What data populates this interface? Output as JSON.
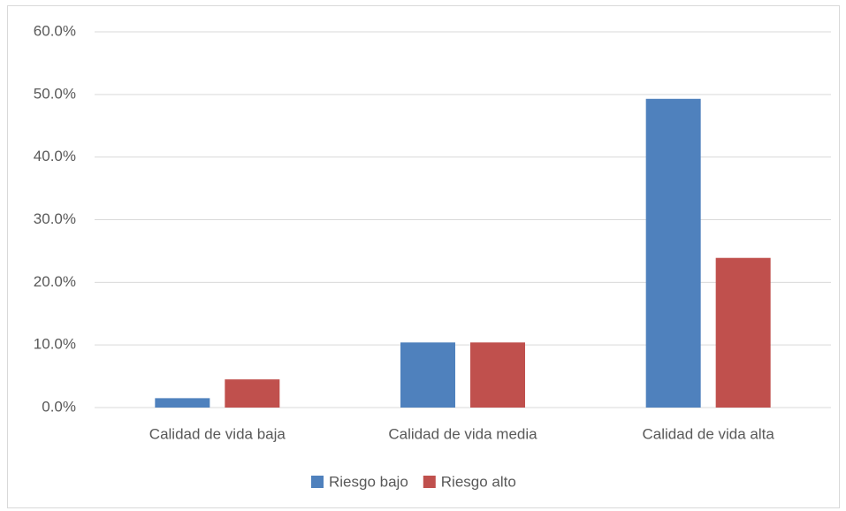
{
  "chart_data": {
    "type": "bar",
    "categories": [
      "Calidad de vida baja",
      "Calidad de vida media",
      "Calidad de vida alta"
    ],
    "series": [
      {
        "name": "Riesgo bajo",
        "color": "#4f81bd",
        "values": [
          1.5,
          10.4,
          49.3
        ]
      },
      {
        "name": "Riesgo alto",
        "color": "#c0504d",
        "values": [
          4.5,
          10.4,
          23.9
        ]
      }
    ],
    "ylim": [
      0,
      60
    ],
    "yticks": [
      {
        "value": 0,
        "label": "0.0%"
      },
      {
        "value": 10,
        "label": "10.0%"
      },
      {
        "value": 20,
        "label": "20.0%"
      },
      {
        "value": 30,
        "label": "30.0%"
      },
      {
        "value": 40,
        "label": "40.0%"
      },
      {
        "value": 50,
        "label": "50.0%"
      },
      {
        "value": 60,
        "label": "60.0%"
      }
    ],
    "grid": true,
    "legend": "bottom"
  }
}
